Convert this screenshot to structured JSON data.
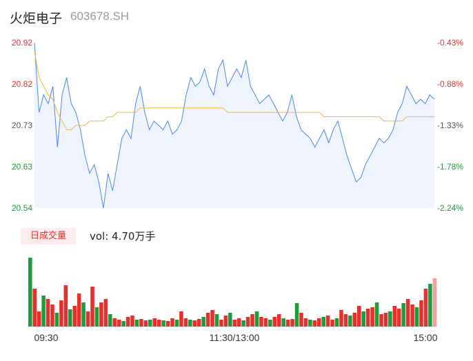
{
  "header": {
    "name": "火炬电子",
    "code": "603678.SH"
  },
  "volume_panel": {
    "tab_label": "日成交量",
    "vol_text": "vol: 4.70万手"
  },
  "colors": {
    "price_line": "#4a86e8",
    "avg_line": "#f5b533",
    "up": "#e5302d",
    "down": "#1c9c3a",
    "area": "#eef3fd"
  },
  "chart_data": [
    {
      "type": "line",
      "title": "",
      "y_left_ticks": [
        "20.92",
        "20.82",
        "20.73",
        "20.63",
        "20.54"
      ],
      "y_right_ticks": [
        "-0.43%",
        "-0.88%",
        "-1.33%",
        "-1.78%",
        "-2.24%"
      ],
      "ylim": [
        20.54,
        20.92
      ],
      "x_ticks": [
        "09:30",
        "11:30/13:00",
        "15:00"
      ],
      "series": [
        {
          "values": [
            20.92,
            20.76,
            20.8,
            20.78,
            20.82,
            20.68,
            20.8,
            20.84,
            20.78,
            20.76,
            20.72,
            20.66,
            20.62,
            20.64,
            20.6,
            20.54,
            20.62,
            20.58,
            20.64,
            20.7,
            20.72,
            20.7,
            20.78,
            20.82,
            20.76,
            20.72,
            20.74,
            20.73,
            20.72,
            20.74,
            20.71,
            20.72,
            20.74,
            20.8,
            20.84,
            20.82,
            20.83,
            20.86,
            20.82,
            20.8,
            20.86,
            20.88,
            20.82,
            20.84,
            20.86,
            20.84,
            20.88,
            20.82,
            20.8,
            20.78,
            20.79,
            20.8,
            20.78,
            20.76,
            20.74,
            20.76,
            20.8,
            20.75,
            20.72,
            20.71,
            20.7,
            20.68,
            20.7,
            20.72,
            20.69,
            20.72,
            20.74,
            20.7,
            20.66,
            20.63,
            20.6,
            20.61,
            20.64,
            20.66,
            20.68,
            20.7,
            20.69,
            20.7,
            20.72,
            20.76,
            20.78,
            20.82,
            20.8,
            20.78,
            20.79,
            20.78,
            20.8,
            20.79
          ]
        },
        {
          "values": [
            20.9,
            20.84,
            20.82,
            20.8,
            20.79,
            20.76,
            20.74,
            20.72,
            20.72,
            20.73,
            20.73,
            20.73,
            20.74,
            20.74,
            20.74,
            20.74,
            20.75,
            20.75,
            20.76,
            20.76,
            20.76,
            20.76,
            20.76,
            20.77,
            20.77,
            20.77,
            20.77,
            20.77,
            20.77,
            20.77,
            20.77,
            20.77,
            20.77,
            20.77,
            20.77,
            20.77,
            20.77,
            20.77,
            20.77,
            20.77,
            20.77,
            20.77,
            20.76,
            20.76,
            20.76,
            20.76,
            20.76,
            20.76,
            20.76,
            20.76,
            20.76,
            20.76,
            20.76,
            20.76,
            20.76,
            20.76,
            20.76,
            20.76,
            20.76,
            20.76,
            20.76,
            20.76,
            20.76,
            20.75,
            20.75,
            20.75,
            20.75,
            20.75,
            20.75,
            20.75,
            20.75,
            20.75,
            20.75,
            20.75,
            20.75,
            20.75,
            20.74,
            20.74,
            20.74,
            20.74,
            20.74,
            20.75,
            20.75,
            20.75,
            20.75,
            20.75,
            20.75,
            20.75
          ]
        }
      ]
    },
    {
      "type": "bar",
      "title": "",
      "ylim": [
        0,
        100
      ],
      "values": [
        100,
        55,
        22,
        45,
        40,
        32,
        20,
        38,
        60,
        25,
        30,
        48,
        35,
        22,
        58,
        28,
        35,
        40,
        18,
        12,
        10,
        8,
        14,
        16,
        10,
        11,
        9,
        10,
        12,
        10,
        9,
        8,
        12,
        10,
        22,
        12,
        10,
        9,
        11,
        14,
        20,
        24,
        18,
        10,
        16,
        20,
        10,
        12,
        9,
        14,
        18,
        22,
        14,
        12,
        10,
        14,
        18,
        12,
        10,
        11,
        34,
        20,
        12,
        10,
        9,
        12,
        14,
        16,
        10,
        12,
        24,
        18,
        16,
        20,
        30,
        22,
        26,
        28,
        35,
        18,
        20,
        22,
        30,
        26,
        34,
        40,
        32,
        28,
        38,
        55,
        62,
        70
      ]
    }
  ]
}
